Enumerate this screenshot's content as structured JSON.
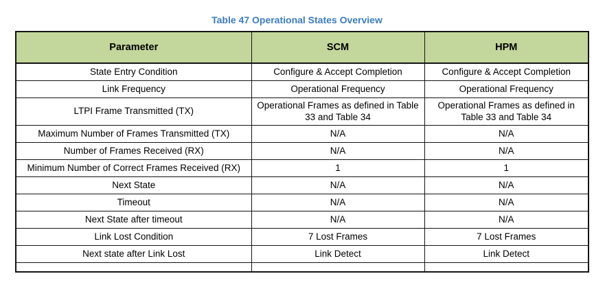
{
  "title": "Table 47 Operational States Overview",
  "table": {
    "headers": [
      "Parameter",
      "SCM",
      "HPM"
    ],
    "rows": [
      [
        "State Entry Condition",
        "Configure & Accept Completion",
        "Configure & Accept Completion"
      ],
      [
        "Link Frequency",
        "Operational Frequency",
        "Operational Frequency"
      ],
      [
        "LTPI Frame Transmitted (TX)",
        "Operational Frames as defined in Table 33 and Table 34",
        "Operational Frames as defined in Table 33 and Table 34"
      ],
      [
        "Maximum Number of Frames Transmitted (TX)",
        "N/A",
        "N/A"
      ],
      [
        "Number of Frames Received (RX)",
        "N/A",
        "N/A"
      ],
      [
        "Minimum Number of Correct Frames Received (RX)",
        "1",
        "1"
      ],
      [
        "Next State",
        "N/A",
        "N/A"
      ],
      [
        "Timeout",
        "N/A",
        "N/A"
      ],
      [
        "Next State after timeout",
        "N/A",
        "N/A"
      ],
      [
        "Link Lost Condition",
        "7 Lost Frames",
        "7 Lost Frames"
      ],
      [
        "Next state after Link Lost",
        "Link Detect",
        "Link Detect"
      ]
    ],
    "tall_row_index": 2
  },
  "colors": {
    "title_blue": "#3b7cbe",
    "header_green": "#c3d69b",
    "border_black": "#131313",
    "background": "#ffffff"
  }
}
